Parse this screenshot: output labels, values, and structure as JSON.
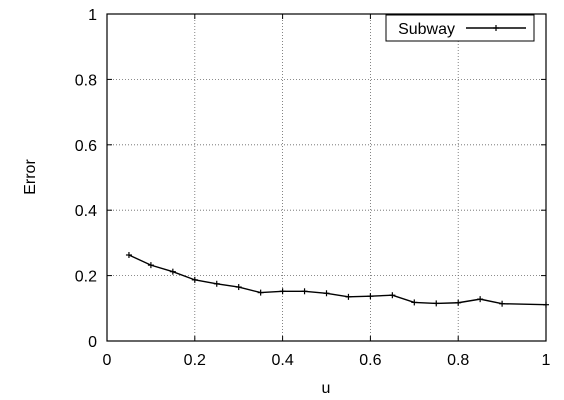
{
  "chart_data": {
    "type": "line",
    "title": "",
    "xlabel": "u",
    "ylabel": "Error",
    "xlim": [
      0,
      1
    ],
    "ylim": [
      0,
      1
    ],
    "x_ticks": [
      "0",
      "0.2",
      "0.4",
      "0.6",
      "0.8",
      "1"
    ],
    "y_ticks": [
      "0",
      "0.2",
      "0.4",
      "0.6",
      "0.8",
      "1"
    ],
    "grid": true,
    "legend_position": "top-right",
    "series": [
      {
        "name": "Subway",
        "color": "#000000",
        "marker": "plus",
        "x": [
          0.05,
          0.1,
          0.15,
          0.2,
          0.25,
          0.3,
          0.35,
          0.4,
          0.45,
          0.5,
          0.55,
          0.6,
          0.65,
          0.7,
          0.75,
          0.8,
          0.85,
          0.9,
          1.0
        ],
        "y": [
          0.263,
          0.232,
          0.212,
          0.187,
          0.175,
          0.165,
          0.148,
          0.152,
          0.152,
          0.146,
          0.135,
          0.137,
          0.14,
          0.118,
          0.115,
          0.117,
          0.128,
          0.114,
          0.111
        ]
      }
    ]
  }
}
